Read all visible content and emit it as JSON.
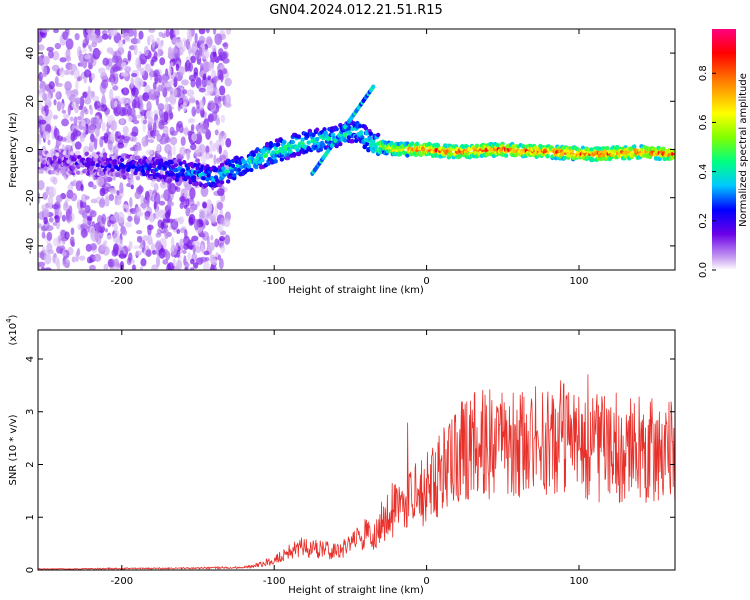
{
  "figure": {
    "title": "GN04.2024.012.21.51.R15"
  },
  "chart_data": [
    {
      "type": "heatmap",
      "xlabel": "Height of straight line (km)",
      "ylabel": "Frequency (Hz)",
      "xlim": [
        -255,
        163
      ],
      "ylim": [
        -50,
        50
      ],
      "xticks": [
        "-200",
        "-100",
        "0",
        "100"
      ],
      "xtick_values": [
        -200,
        -100,
        0,
        100
      ],
      "yticks": [
        "-40",
        "-20",
        "0",
        "20",
        "40"
      ],
      "ytick_values": [
        -40,
        -20,
        0,
        20,
        40
      ],
      "colorbar": {
        "label": "Normalized spectral amplitude",
        "ticks": [
          "0.0",
          "0.2",
          "0.4",
          "0.6",
          "0.8"
        ],
        "tick_values": [
          0.0,
          0.2,
          0.4,
          0.6,
          0.8
        ],
        "range": [
          0,
          0.98
        ],
        "colormap": [
          "#ffffff",
          "#c8a0f0",
          "#6a00e8",
          "#0000ff",
          "#00c8ff",
          "#00ff80",
          "#80ff00",
          "#ffff00",
          "#ff8000",
          "#ff0000",
          "#ff0080"
        ]
      },
      "ridge": [
        {
          "x": -255,
          "y": -5,
          "amp": 0.15
        },
        {
          "x": -225,
          "y": -6,
          "amp": 0.2
        },
        {
          "x": -200,
          "y": -7,
          "amp": 0.25
        },
        {
          "x": -180,
          "y": -8,
          "amp": 0.3
        },
        {
          "x": -160,
          "y": -9,
          "amp": 0.35
        },
        {
          "x": -140,
          "y": -12,
          "amp": 0.4
        },
        {
          "x": -120,
          "y": -6,
          "amp": 0.45
        },
        {
          "x": -100,
          "y": -1,
          "amp": 0.5
        },
        {
          "x": -80,
          "y": 3,
          "amp": 0.5
        },
        {
          "x": -60,
          "y": 5,
          "amp": 0.45
        },
        {
          "x": -45,
          "y": 8,
          "amp": 0.45
        },
        {
          "x": -35,
          "y": 2,
          "amp": 0.5
        },
        {
          "x": -20,
          "y": 0,
          "amp": 0.75
        },
        {
          "x": 0,
          "y": 0,
          "amp": 0.85
        },
        {
          "x": 20,
          "y": -1,
          "amp": 0.85
        },
        {
          "x": 50,
          "y": 0,
          "amp": 0.85
        },
        {
          "x": 80,
          "y": -1,
          "amp": 0.85
        },
        {
          "x": 110,
          "y": -2,
          "amp": 0.85
        },
        {
          "x": 140,
          "y": -1,
          "amp": 0.85
        },
        {
          "x": 163,
          "y": -2,
          "amp": 0.85
        }
      ]
    },
    {
      "type": "line",
      "xlabel": "Height of straight line (km)",
      "ylabel": "SNR (10 * v/v)",
      "scale_label": "(x10^4)",
      "xlim": [
        -255,
        163
      ],
      "ylim": [
        0,
        4.55
      ],
      "xticks": [
        "-200",
        "-100",
        "0",
        "100"
      ],
      "xtick_values": [
        -200,
        -100,
        0,
        100
      ],
      "yticks": [
        "0",
        "1",
        "2",
        "3",
        "4"
      ],
      "ytick_values": [
        0,
        1,
        2,
        3,
        4
      ],
      "color": "#e8302a",
      "series": [
        {
          "x": [
            -255,
            -230,
            -200,
            -170,
            -140,
            -120,
            -110,
            -100,
            -90,
            -80,
            -70,
            -60,
            -50,
            -40,
            -35,
            -30,
            -25,
            -20,
            -15,
            -10,
            -5,
            0,
            5,
            10,
            15,
            20,
            25,
            30,
            35,
            40,
            45,
            50,
            55,
            60,
            65,
            70,
            75,
            80,
            85,
            90,
            95,
            100,
            105,
            110,
            115,
            120,
            125,
            130,
            135,
            140,
            145,
            150,
            155,
            160,
            163
          ],
          "y": [
            0.02,
            0.02,
            0.03,
            0.03,
            0.04,
            0.05,
            0.1,
            0.2,
            0.35,
            0.45,
            0.4,
            0.35,
            0.45,
            0.7,
            0.55,
            0.9,
            1.0,
            1.2,
            1.3,
            1.4,
            1.45,
            1.55,
            1.7,
            1.9,
            2.0,
            2.1,
            2.3,
            2.45,
            2.45,
            2.4,
            2.3,
            2.35,
            2.4,
            2.5,
            2.45,
            2.5,
            2.4,
            2.4,
            2.5,
            2.55,
            2.4,
            2.35,
            2.2,
            2.3,
            2.35,
            2.2,
            2.3,
            2.25,
            2.3,
            2.3,
            2.2,
            2.3,
            2.2,
            2.25,
            2.3
          ]
        }
      ]
    }
  ]
}
